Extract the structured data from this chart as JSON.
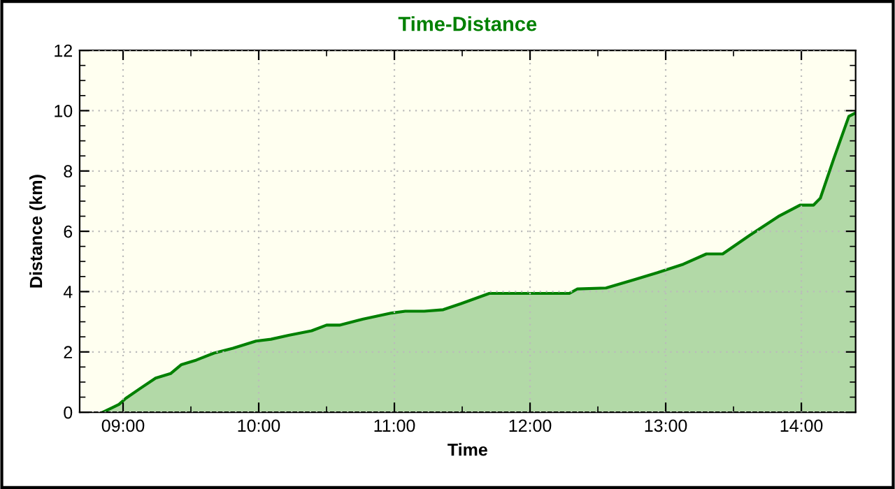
{
  "chart_data": {
    "type": "area",
    "title": "Time-Distance",
    "xlabel": "Time",
    "ylabel": "Distance (km)",
    "x": [
      8.85,
      8.92,
      8.97,
      9.02,
      9.12,
      9.24,
      9.35,
      9.43,
      9.54,
      9.67,
      9.81,
      9.98,
      10.09,
      10.22,
      10.39,
      10.5,
      10.6,
      10.77,
      10.98,
      11.08,
      11.22,
      11.36,
      11.49,
      11.7,
      12.29,
      12.35,
      12.56,
      12.77,
      12.94,
      13.13,
      13.3,
      13.42,
      13.62,
      13.83,
      13.99,
      14.09,
      14.14,
      14.24,
      14.35,
      14.4
    ],
    "series": [
      {
        "color": "#008000",
        "values": [
          0,
          0.15,
          0.26,
          0.46,
          0.77,
          1.13,
          1.28,
          1.58,
          1.73,
          1.96,
          2.12,
          2.36,
          2.42,
          2.55,
          2.7,
          2.89,
          2.89,
          3.09,
          3.29,
          3.35,
          3.35,
          3.4,
          3.6,
          3.94,
          3.94,
          4.09,
          4.12,
          4.4,
          4.63,
          4.91,
          5.25,
          5.25,
          5.87,
          6.49,
          6.87,
          6.87,
          7.1,
          8.42,
          9.81,
          9.93
        ]
      }
    ],
    "xlim": [
      8.68,
      14.4
    ],
    "ylim": [
      0,
      12
    ],
    "xticks": [
      {
        "value": 9,
        "label": "09:00"
      },
      {
        "value": 9.5,
        "label": null
      },
      {
        "value": 10,
        "label": "10:00"
      },
      {
        "value": 10.5,
        "label": null
      },
      {
        "value": 11,
        "label": "11:00"
      },
      {
        "value": 11.5,
        "label": null
      },
      {
        "value": 12,
        "label": "12:00"
      },
      {
        "value": 12.5,
        "label": null
      },
      {
        "value": 13,
        "label": "13:00"
      },
      {
        "value": 13.5,
        "label": null
      },
      {
        "value": 14,
        "label": "14:00"
      }
    ],
    "yticks": [
      0,
      {
        "value": 0.5,
        "label": null
      },
      {
        "value": 1,
        "label": null
      },
      {
        "value": 1.5,
        "label": null
      },
      2,
      {
        "value": 2.5,
        "label": null
      },
      {
        "value": 3,
        "label": null
      },
      {
        "value": 3.5,
        "label": null
      },
      4,
      {
        "value": 4.5,
        "label": null
      },
      {
        "value": 5,
        "label": null
      },
      {
        "value": 5.5,
        "label": null
      },
      6,
      {
        "value": 6.5,
        "label": null
      },
      {
        "value": 7,
        "label": null
      },
      {
        "value": 7.5,
        "label": null
      },
      8,
      {
        "value": 8.5,
        "label": null
      },
      {
        "value": 9,
        "label": null
      },
      {
        "value": 9.5,
        "label": null
      },
      10,
      {
        "value": 10.5,
        "label": null
      },
      {
        "value": 11,
        "label": null
      },
      {
        "value": 11.5,
        "label": null
      },
      12
    ],
    "grid": true
  }
}
